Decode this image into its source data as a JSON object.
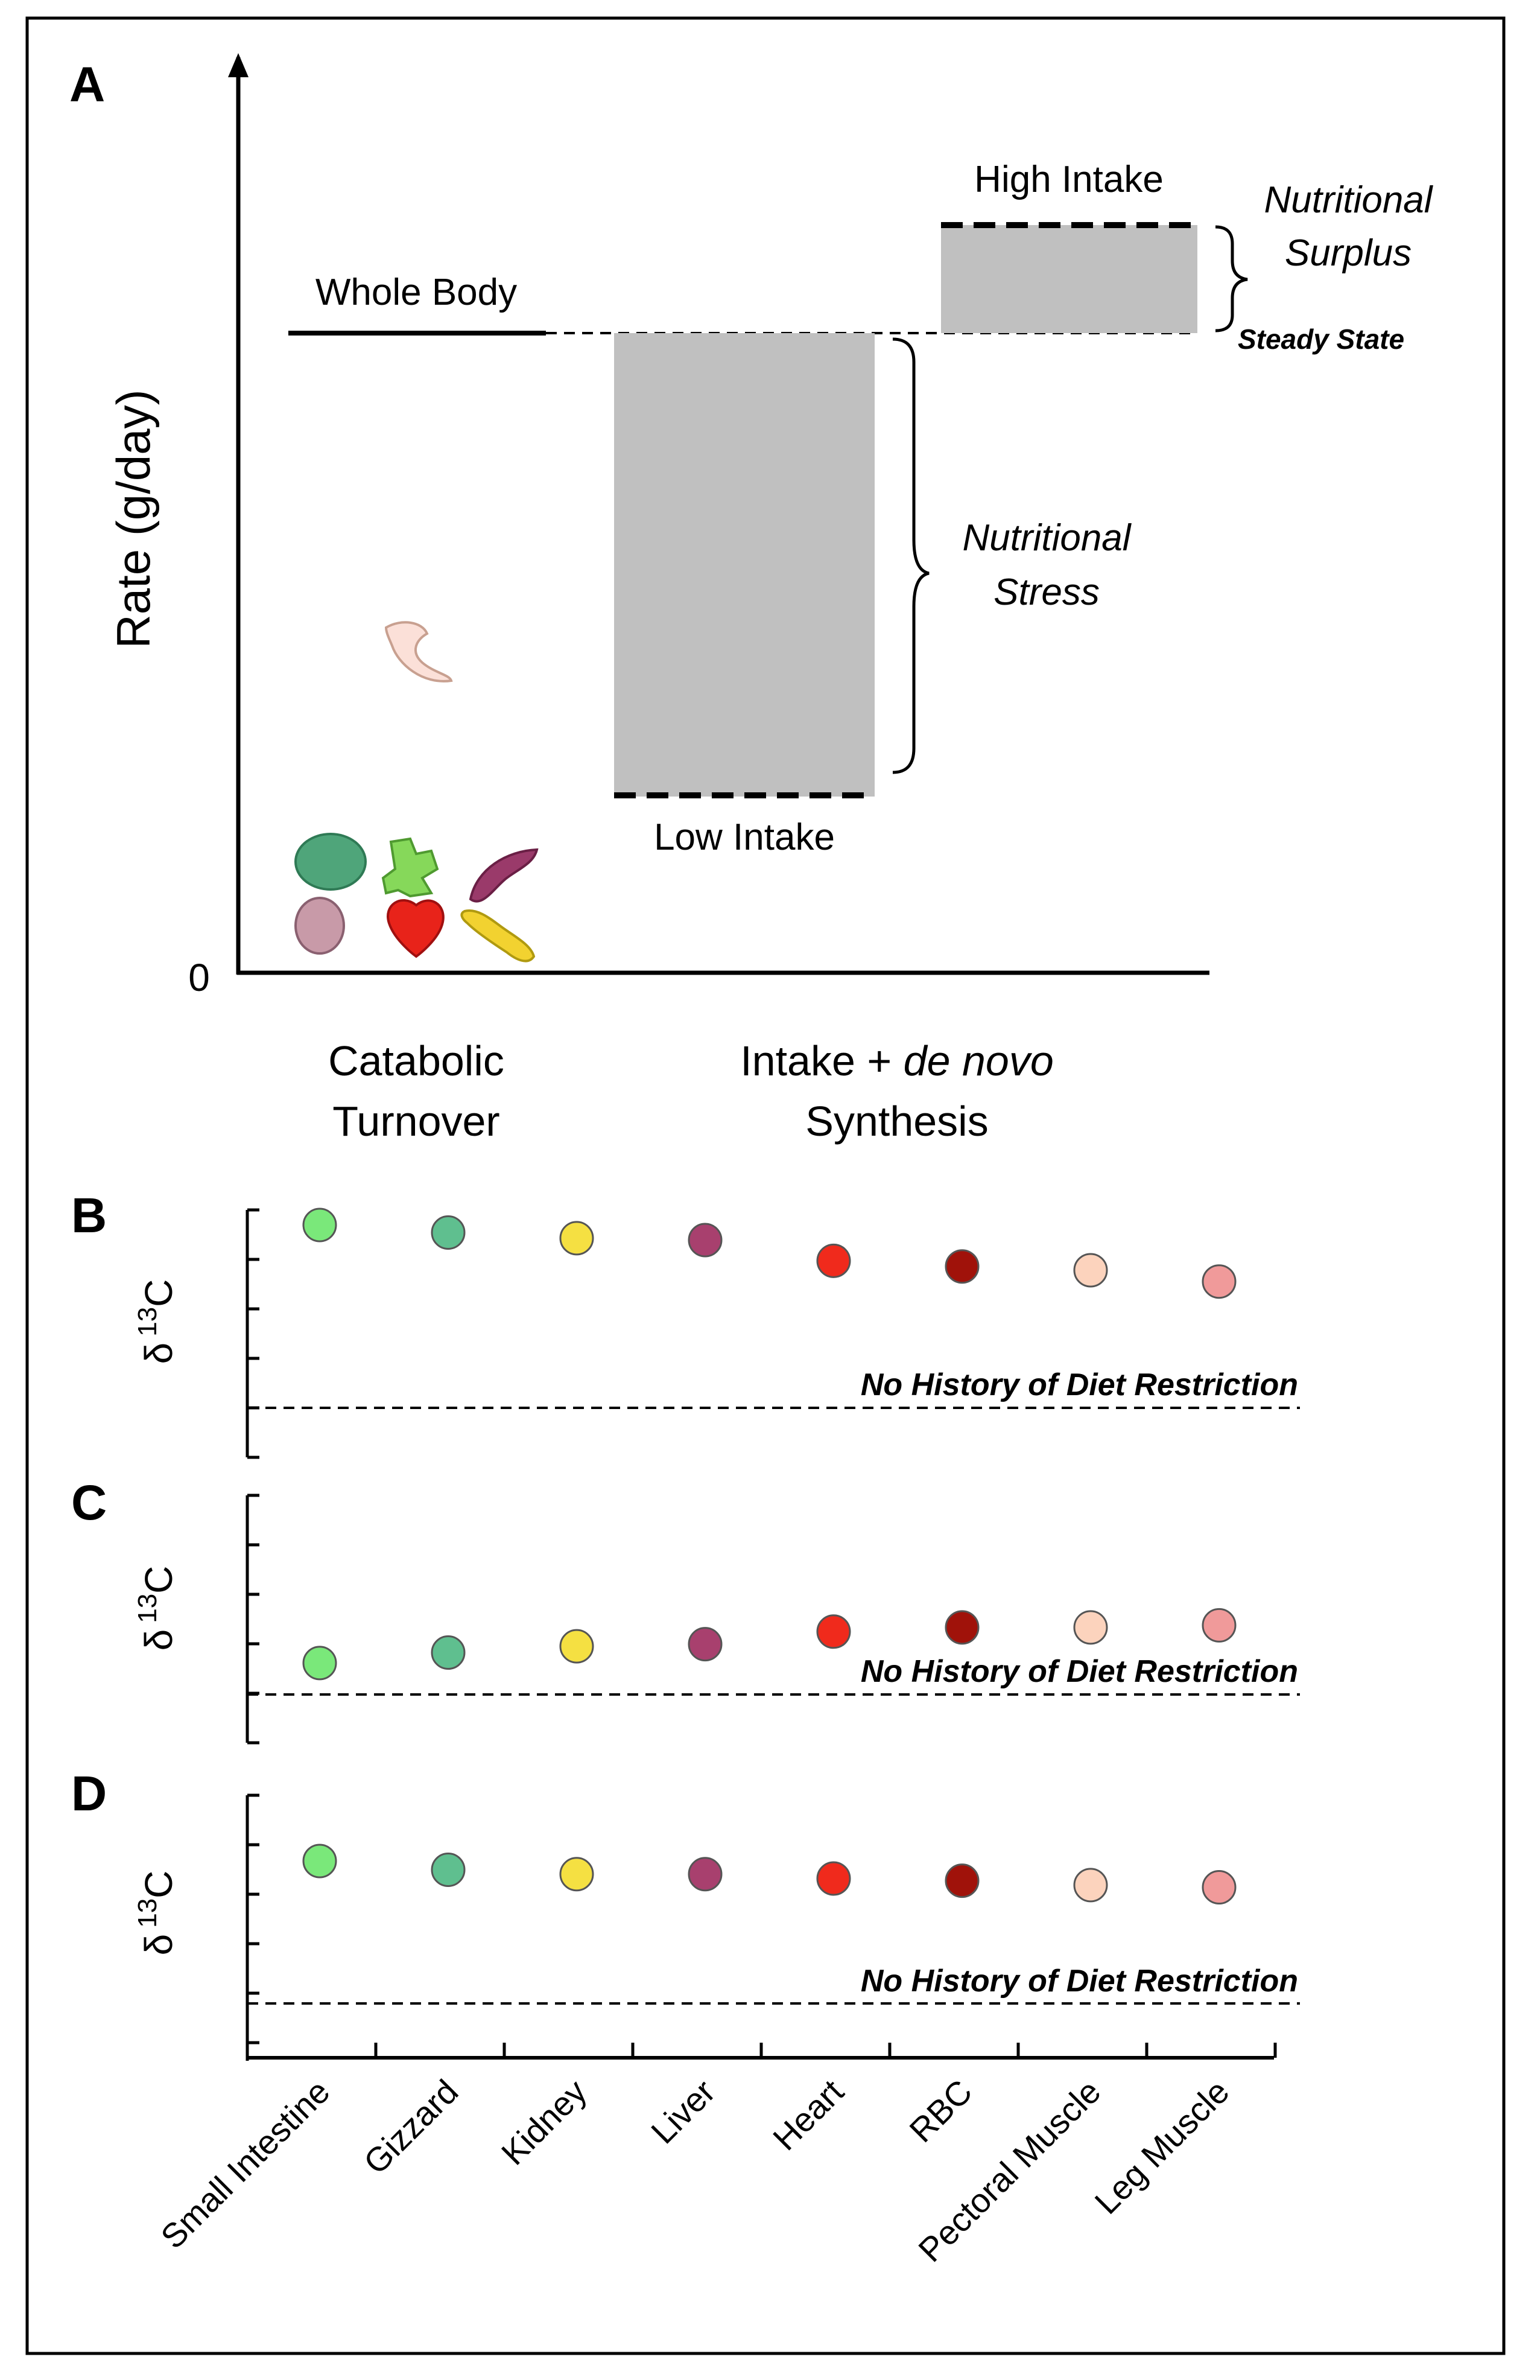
{
  "panel_a": {
    "letter": "A",
    "y_axis_label": "Rate (g/day)",
    "y_zero_label": "0",
    "whole_body_label": "Whole Body",
    "high_intake_label": "High Intake",
    "low_intake_label": "Low Intake",
    "surplus_line1": "Nutritional",
    "surplus_line2": "Surplus",
    "steady_state_label": "Steady State",
    "stress_line1": "Nutritional",
    "stress_line2": "Stress",
    "x_left_line1": "Catabolic",
    "x_left_line2": "Turnover",
    "x_right_line1_plain": "Intake + ",
    "x_right_line1_italic": "de novo",
    "x_right_line2": "Synthesis",
    "organ_icons": [
      "pectoral-muscle-icon",
      "gizzard-icon",
      "small-intestine-icon",
      "liver-icon",
      "kidney-icon",
      "heart-icon",
      "leg-muscle-icon"
    ],
    "colors": {
      "bar_fill": "#c0c0c0",
      "line": "#000000"
    }
  },
  "chart_data": [
    {
      "type": "scatter",
      "panel": "B",
      "ylabel_delta": "δ",
      "ylabel_super": "13",
      "ylabel_symbol": "C",
      "reference_line_label": "No History of Diet Restriction",
      "reference_value": 0,
      "ylim": [
        -0.1,
        1.05
      ],
      "categories": [
        "Small Intestine",
        "Gizzard",
        "Kidney",
        "Liver",
        "Heart",
        "RBC",
        "Pectoral Muscle",
        "Leg Muscle"
      ],
      "values": [
        0.97,
        0.93,
        0.9,
        0.89,
        0.78,
        0.75,
        0.73,
        0.67
      ],
      "colors": [
        "#7ae87a",
        "#5fbf8f",
        "#f5e042",
        "#a8406e",
        "#f02a1c",
        "#a0120a",
        "#fcd3bd",
        "#f09a9a"
      ]
    },
    {
      "type": "scatter",
      "panel": "C",
      "ylabel_delta": "δ",
      "ylabel_super": "13",
      "ylabel_symbol": "C",
      "reference_line_label": "No History of Diet Restriction",
      "reference_value": 0,
      "ylim": [
        -0.2,
        0.95
      ],
      "categories": [
        "Small Intestine",
        "Gizzard",
        "Kidney",
        "Liver",
        "Heart",
        "RBC",
        "Pectoral Muscle",
        "Leg Muscle"
      ],
      "values": [
        0.15,
        0.2,
        0.23,
        0.24,
        0.3,
        0.32,
        0.32,
        0.33
      ],
      "colors": [
        "#7ae87a",
        "#5fbf8f",
        "#f5e042",
        "#a8406e",
        "#f02a1c",
        "#a0120a",
        "#fcd3bd",
        "#f09a9a"
      ]
    },
    {
      "type": "scatter",
      "panel": "D",
      "ylabel_delta": "δ",
      "ylabel_super": "13",
      "ylabel_symbol": "C",
      "reference_line_label": "No History of Diet Restriction",
      "reference_value": 0,
      "ylim": [
        -0.2,
        0.95
      ],
      "categories": [
        "Small Intestine",
        "Gizzard",
        "Kidney",
        "Liver",
        "Heart",
        "RBC",
        "Pectoral Muscle",
        "Leg Muscle"
      ],
      "values": [
        0.65,
        0.61,
        0.59,
        0.59,
        0.57,
        0.56,
        0.54,
        0.53
      ],
      "colors": [
        "#7ae87a",
        "#5fbf8f",
        "#f5e042",
        "#a8406e",
        "#f02a1c",
        "#a0120a",
        "#fcd3bd",
        "#f09a9a"
      ]
    }
  ]
}
